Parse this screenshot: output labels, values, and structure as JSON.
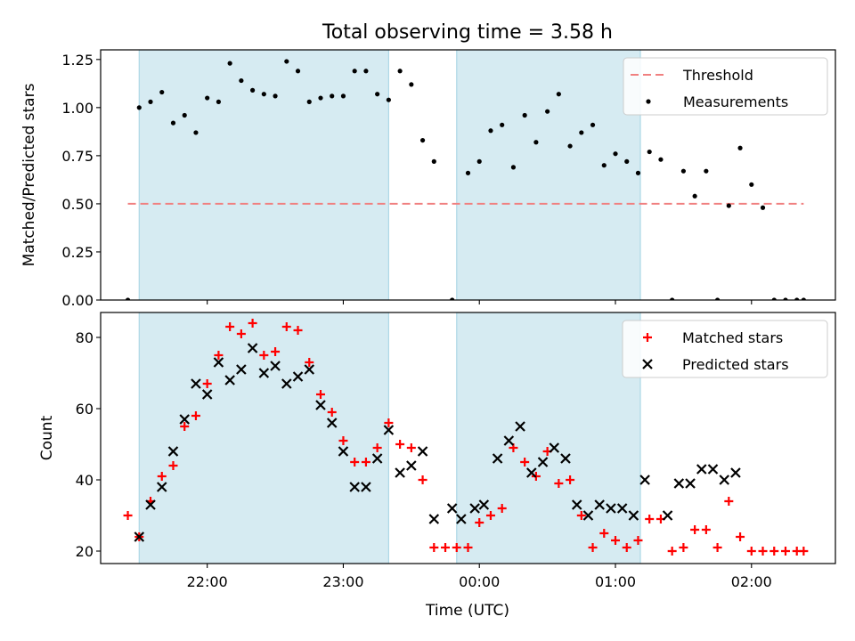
{
  "figure": {
    "title": "Total observing time = 3.58 h",
    "xlabel": "Time (UTC)"
  },
  "colors": {
    "shade": "#add8e6",
    "threshold": "#f08080",
    "measurement": "#000000",
    "matched": "#ff0000",
    "predicted": "#000000"
  },
  "chart_data": [
    {
      "type": "scatter",
      "ylabel": "Matched/Predicted stars",
      "ylim": [
        0,
        1.3
      ],
      "xlim": [
        "21:13",
        "02:37"
      ],
      "x_ticks": [
        "22:00",
        "23:00",
        "00:00",
        "01:00",
        "02:00"
      ],
      "y_ticks": [
        "0.00",
        "0.25",
        "0.50",
        "0.75",
        "1.00",
        "1.25"
      ],
      "shaded_intervals": [
        [
          "21:30",
          "23:20"
        ],
        [
          "23:50",
          "01:11"
        ]
      ],
      "legend": {
        "position": "top-right",
        "entries": [
          "Threshold",
          "Measurements"
        ]
      },
      "threshold": {
        "name": "Threshold",
        "value": 0.5,
        "x_range": [
          "21:25",
          "02:23"
        ]
      },
      "series": [
        {
          "name": "Measurements",
          "x": [
            "21:25",
            "21:30",
            "21:35",
            "21:40",
            "21:45",
            "21:50",
            "21:55",
            "22:00",
            "22:05",
            "22:10",
            "22:15",
            "22:20",
            "22:25",
            "22:30",
            "22:35",
            "22:40",
            "22:45",
            "22:50",
            "22:55",
            "23:00",
            "23:05",
            "23:10",
            "23:15",
            "23:20",
            "23:25",
            "23:30",
            "23:35",
            "23:40",
            "23:48",
            "23:55",
            "00:00",
            "00:05",
            "00:10",
            "00:15",
            "00:20",
            "00:25",
            "00:30",
            "00:35",
            "00:40",
            "00:45",
            "00:50",
            "00:55",
            "01:00",
            "01:05",
            "01:10",
            "01:15",
            "01:20",
            "01:25",
            "01:30",
            "01:35",
            "01:40",
            "01:45",
            "01:50",
            "01:55",
            "02:00",
            "02:05",
            "02:10",
            "02:15",
            "02:20",
            "02:23"
          ],
          "values": [
            0.0,
            1.0,
            1.03,
            1.08,
            0.92,
            0.96,
            0.87,
            1.05,
            1.03,
            1.23,
            1.14,
            1.09,
            1.07,
            1.06,
            1.24,
            1.19,
            1.03,
            1.05,
            1.06,
            1.06,
            1.19,
            1.19,
            1.07,
            1.04,
            1.19,
            1.12,
            0.83,
            0.72,
            0.0,
            0.66,
            0.72,
            0.88,
            0.91,
            0.69,
            0.96,
            0.82,
            0.98,
            1.07,
            0.8,
            0.87,
            0.91,
            0.7,
            0.76,
            0.72,
            0.66,
            0.77,
            0.73,
            0.0,
            0.67,
            0.54,
            0.67,
            0.0,
            0.49,
            0.79,
            0.6,
            0.48,
            0.0,
            0.0,
            0.0,
            0.0
          ]
        }
      ]
    },
    {
      "type": "scatter",
      "ylabel": "Count",
      "ylim": [
        16.5,
        87
      ],
      "xlim": [
        "21:13",
        "02:37"
      ],
      "x_ticks": [
        "22:00",
        "23:00",
        "00:00",
        "01:00",
        "02:00"
      ],
      "y_ticks": [
        "20",
        "40",
        "60",
        "80"
      ],
      "shaded_intervals": [
        [
          "21:30",
          "23:20"
        ],
        [
          "23:50",
          "01:11"
        ]
      ],
      "legend": {
        "position": "top-right",
        "entries": [
          "Matched stars",
          "Predicted stars"
        ]
      },
      "series": [
        {
          "name": "Matched stars",
          "marker": "plus",
          "x": [
            "21:25",
            "21:30",
            "21:35",
            "21:40",
            "21:45",
            "21:50",
            "21:55",
            "22:00",
            "22:05",
            "22:10",
            "22:15",
            "22:20",
            "22:25",
            "22:30",
            "22:35",
            "22:40",
            "22:45",
            "22:50",
            "22:55",
            "23:00",
            "23:05",
            "23:10",
            "23:15",
            "23:20",
            "23:25",
            "23:30",
            "23:35",
            "23:40",
            "23:45",
            "23:50",
            "23:55",
            "00:00",
            "00:05",
            "00:10",
            "00:15",
            "00:20",
            "00:25",
            "00:30",
            "00:35",
            "00:40",
            "00:45",
            "00:50",
            "00:55",
            "01:00",
            "01:05",
            "01:10",
            "01:15",
            "01:20",
            "01:25",
            "01:30",
            "01:35",
            "01:40",
            "01:45",
            "01:50",
            "01:55",
            "02:00",
            "02:05",
            "02:10",
            "02:15",
            "02:20",
            "02:23"
          ],
          "values": [
            30,
            24,
            34,
            41,
            44,
            55,
            58,
            67,
            75,
            83,
            81,
            84,
            75,
            76,
            83,
            82,
            73,
            64,
            59,
            51,
            45,
            45,
            49,
            56,
            50,
            49,
            40,
            21,
            21,
            21,
            21,
            28,
            30,
            32,
            49,
            45,
            41,
            48,
            39,
            40,
            30,
            21,
            25,
            23,
            21,
            23,
            29,
            29,
            20,
            21,
            26,
            26,
            21,
            34,
            24,
            20,
            20,
            20,
            20,
            20,
            20
          ]
        },
        {
          "name": "Predicted stars",
          "marker": "x",
          "x": [
            "21:30",
            "21:35",
            "21:40",
            "21:45",
            "21:50",
            "21:55",
            "22:00",
            "22:05",
            "22:10",
            "22:15",
            "22:20",
            "22:25",
            "22:30",
            "22:35",
            "22:40",
            "22:45",
            "22:50",
            "22:55",
            "23:00",
            "23:05",
            "23:10",
            "23:15",
            "23:20",
            "23:25",
            "23:30",
            "23:35",
            "23:40",
            "23:48",
            "23:52",
            "23:58",
            "00:02",
            "00:08",
            "00:13",
            "00:18",
            "00:23",
            "00:28",
            "00:33",
            "00:38",
            "00:43",
            "00:48",
            "00:53",
            "00:58",
            "01:03",
            "01:08",
            "01:13",
            "01:23",
            "01:28",
            "01:33",
            "01:38",
            "01:43",
            "01:48",
            "01:53"
          ],
          "values": [
            24,
            33,
            38,
            48,
            57,
            67,
            64,
            73,
            68,
            71,
            77,
            70,
            72,
            67,
            69,
            71,
            61,
            56,
            48,
            38,
            38,
            46,
            54,
            42,
            44,
            48,
            29,
            32,
            29,
            32,
            33,
            46,
            51,
            55,
            42,
            45,
            49,
            46,
            33,
            30,
            33,
            32,
            32,
            30,
            40,
            30,
            39,
            39,
            43,
            43,
            40,
            42
          ]
        }
      ]
    }
  ]
}
